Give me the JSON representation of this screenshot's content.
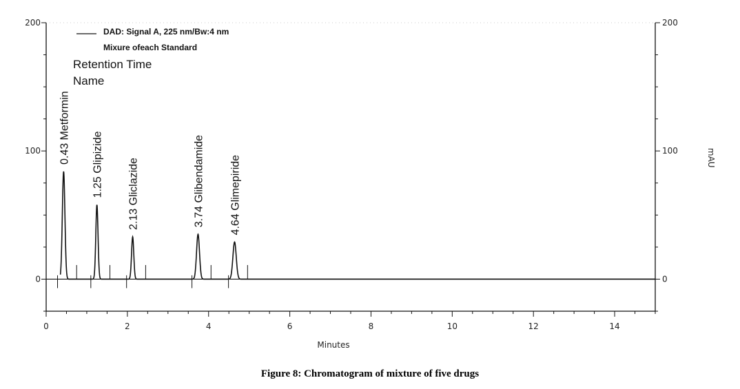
{
  "figure": {
    "caption": "Figure 8: Chromatogram of mixture of five drugs"
  },
  "chart_data": {
    "type": "line",
    "xlabel": "Minutes",
    "ylabel": "mAU",
    "xlim": [
      0,
      15
    ],
    "ylim": [
      -25,
      200
    ],
    "x_ticks": [
      "0",
      "2",
      "4",
      "6",
      "8",
      "10",
      "12",
      "14"
    ],
    "x_tick_values": [
      0,
      2,
      4,
      6,
      8,
      10,
      12,
      14
    ],
    "y_ticks": [
      "0",
      "100",
      "200"
    ],
    "y_tick_values": [
      0,
      100,
      200
    ],
    "legend": {
      "line1": "DAD: Signal A, 225 nm/Bw:4 nm",
      "line2": "Mixure ofeach Standard",
      "placement": "top-left"
    },
    "header_lines": [
      "Retention Time",
      "Name"
    ],
    "peaks": [
      {
        "retention_time": 0.43,
        "rt_label": "0.43",
        "name": "Metformin",
        "height": 84,
        "width": 0.07
      },
      {
        "retention_time": 1.25,
        "rt_label": "1.25",
        "name": "Glipizide",
        "height": 58,
        "width": 0.06
      },
      {
        "retention_time": 2.13,
        "rt_label": "2.13",
        "name": "Gliclazide",
        "height": 33,
        "width": 0.06
      },
      {
        "retention_time": 3.74,
        "rt_label": "3.74",
        "name": "Glibendamide",
        "height": 35,
        "width": 0.08
      },
      {
        "retention_time": 4.64,
        "rt_label": "4.64",
        "name": "Glimepiride",
        "height": 29,
        "width": 0.09
      }
    ],
    "baseline": 0,
    "grid": false
  }
}
